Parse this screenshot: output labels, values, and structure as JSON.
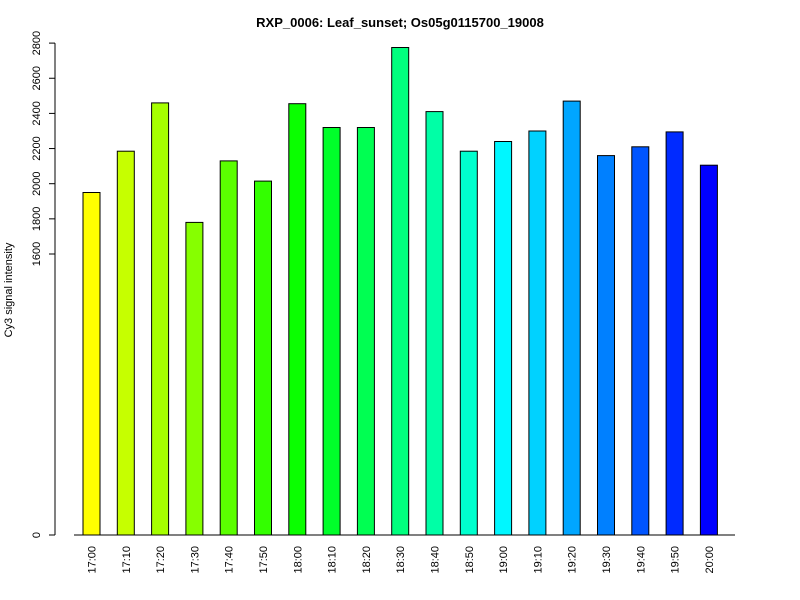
{
  "chart_data": {
    "type": "bar",
    "title": "RXP_0006: Leaf_sunset; Os05g0115700_19008",
    "xlabel": "",
    "ylabel": "Cy3 signal intensity",
    "categories": [
      "17:00",
      "17:10",
      "17:20",
      "17:30",
      "17:40",
      "17:50",
      "18:00",
      "18:10",
      "18:20",
      "18:30",
      "18:40",
      "18:50",
      "19:00",
      "19:10",
      "19:20",
      "19:30",
      "19:40",
      "19:50",
      "20:00"
    ],
    "values": [
      1950,
      2185,
      2460,
      1780,
      2130,
      2015,
      2455,
      2320,
      2320,
      2775,
      2410,
      2185,
      2240,
      2300,
      2470,
      2160,
      2210,
      2295,
      2105
    ],
    "colors": [
      "#ffff00",
      "#c6ff00",
      "#a6ff00",
      "#86ff00",
      "#5bff00",
      "#33ff00",
      "#0aff00",
      "#00ff2a",
      "#00ff52",
      "#00ff7e",
      "#00ffa6",
      "#00ffce",
      "#00f7ff",
      "#00d2ff",
      "#00a6ff",
      "#0080ff",
      "#0055ff",
      "#002aff",
      "#0000ff"
    ],
    "yticks": [
      0,
      1600,
      1800,
      2000,
      2200,
      2400,
      2600,
      2800
    ],
    "ylim": [
      0,
      2800
    ],
    "axis_note": "y-axis is broken: value 0 at the baseline, then a linear scale from 1600 to 2800",
    "grid": false,
    "legend": "none"
  }
}
